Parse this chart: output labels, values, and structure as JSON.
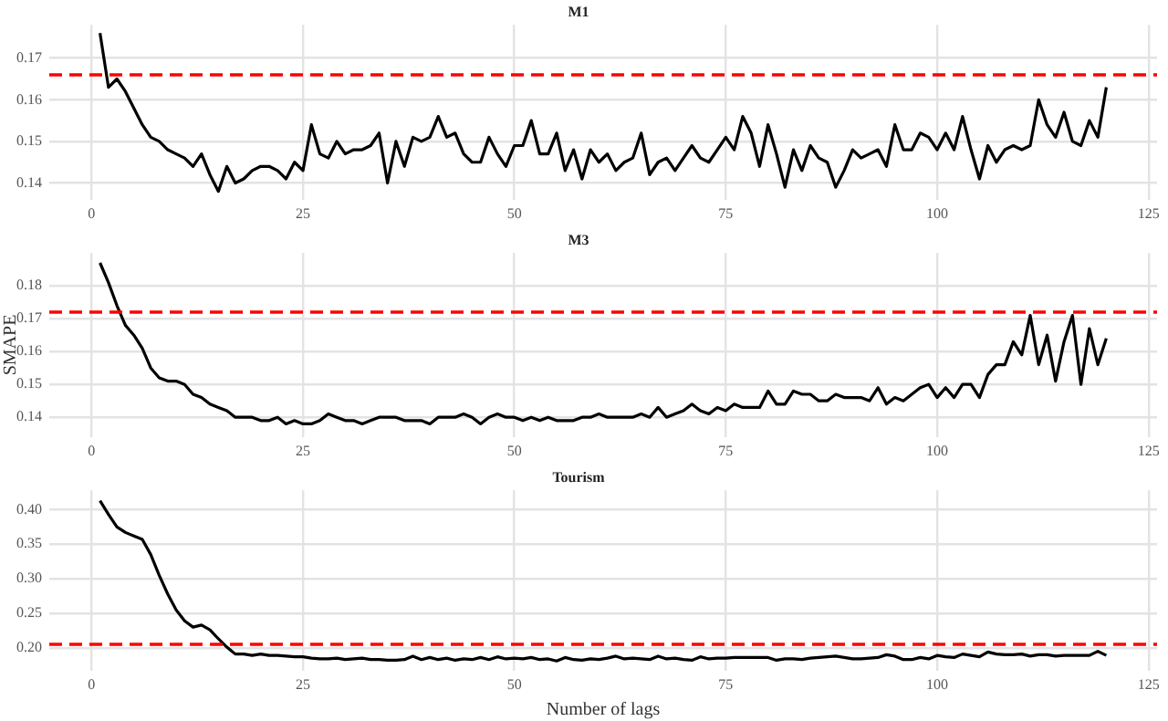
{
  "chart_data": [
    {
      "type": "line",
      "title": "M1",
      "xlim": [
        -5,
        126
      ],
      "xticks": [
        0,
        25,
        50,
        75,
        100,
        125
      ],
      "ylim": [
        0.136,
        0.178
      ],
      "yticks": [
        0.14,
        0.15,
        0.16,
        0.17
      ],
      "grid": true,
      "legend": false,
      "marker": "none",
      "line_style": "solid",
      "x": [
        1,
        2,
        3,
        4,
        5,
        6,
        7,
        8,
        9,
        10,
        11,
        12,
        13,
        14,
        15,
        16,
        17,
        18,
        19,
        20,
        21,
        22,
        23,
        24,
        25,
        26,
        27,
        28,
        29,
        30,
        31,
        32,
        33,
        34,
        35,
        36,
        37,
        38,
        39,
        40,
        41,
        42,
        43,
        44,
        45,
        46,
        47,
        48,
        49,
        50,
        51,
        52,
        53,
        54,
        55,
        56,
        57,
        58,
        59,
        60,
        61,
        62,
        63,
        64,
        65,
        66,
        67,
        68,
        69,
        70,
        71,
        72,
        73,
        74,
        75,
        76,
        77,
        78,
        79,
        80,
        81,
        82,
        83,
        84,
        85,
        86,
        87,
        88,
        89,
        90,
        91,
        92,
        93,
        94,
        95,
        96,
        97,
        98,
        99,
        100,
        101,
        102,
        103,
        104,
        105,
        106,
        107,
        108,
        109,
        110,
        111,
        112,
        113,
        114,
        115,
        116,
        117,
        118,
        119,
        120
      ],
      "series": [
        {
          "color": "#000000",
          "values": [
            0.176,
            0.163,
            0.165,
            0.162,
            0.158,
            0.154,
            0.151,
            0.15,
            0.148,
            0.147,
            0.146,
            0.144,
            0.147,
            0.142,
            0.138,
            0.144,
            0.14,
            0.141,
            0.143,
            0.144,
            0.144,
            0.143,
            0.141,
            0.145,
            0.143,
            0.154,
            0.147,
            0.146,
            0.15,
            0.147,
            0.148,
            0.148,
            0.149,
            0.152,
            0.14,
            0.15,
            0.144,
            0.151,
            0.15,
            0.151,
            0.156,
            0.151,
            0.152,
            0.147,
            0.145,
            0.145,
            0.151,
            0.147,
            0.144,
            0.149,
            0.149,
            0.155,
            0.147,
            0.147,
            0.152,
            0.143,
            0.148,
            0.141,
            0.148,
            0.145,
            0.147,
            0.143,
            0.145,
            0.146,
            0.152,
            0.142,
            0.145,
            0.146,
            0.143,
            0.146,
            0.149,
            0.146,
            0.145,
            0.148,
            0.151,
            0.148,
            0.156,
            0.152,
            0.144,
            0.154,
            0.147,
            0.139,
            0.148,
            0.143,
            0.149,
            0.146,
            0.145,
            0.139,
            0.143,
            0.148,
            0.146,
            0.147,
            0.148,
            0.144,
            0.154,
            0.148,
            0.148,
            0.152,
            0.151,
            0.148,
            0.152,
            0.148,
            0.156,
            0.148,
            0.141,
            0.149,
            0.145,
            0.148,
            0.149,
            0.148,
            0.149,
            0.16,
            0.154,
            0.151,
            0.157,
            0.15,
            0.149,
            0.155,
            0.151,
            0.163
          ]
        }
      ],
      "ref_lines": [
        {
          "axis": "y",
          "value": 0.166,
          "color": "#ff0000",
          "line_style": "dashed"
        }
      ]
    },
    {
      "type": "line",
      "title": "M3",
      "ylabel": "SMAPE",
      "xlim": [
        -5,
        126
      ],
      "xticks": [
        0,
        25,
        50,
        75,
        100,
        125
      ],
      "ylim": [
        0.134,
        0.19
      ],
      "yticks": [
        0.14,
        0.15,
        0.16,
        0.17,
        0.18
      ],
      "grid": true,
      "legend": false,
      "marker": "none",
      "line_style": "solid",
      "x": [
        1,
        2,
        3,
        4,
        5,
        6,
        7,
        8,
        9,
        10,
        11,
        12,
        13,
        14,
        15,
        16,
        17,
        18,
        19,
        20,
        21,
        22,
        23,
        24,
        25,
        26,
        27,
        28,
        29,
        30,
        31,
        32,
        33,
        34,
        35,
        36,
        37,
        38,
        39,
        40,
        41,
        42,
        43,
        44,
        45,
        46,
        47,
        48,
        49,
        50,
        51,
        52,
        53,
        54,
        55,
        56,
        57,
        58,
        59,
        60,
        61,
        62,
        63,
        64,
        65,
        66,
        67,
        68,
        69,
        70,
        71,
        72,
        73,
        74,
        75,
        76,
        77,
        78,
        79,
        80,
        81,
        82,
        83,
        84,
        85,
        86,
        87,
        88,
        89,
        90,
        91,
        92,
        93,
        94,
        95,
        96,
        97,
        98,
        99,
        100,
        101,
        102,
        103,
        104,
        105,
        106,
        107,
        108,
        109,
        110,
        111,
        112,
        113,
        114,
        115,
        116,
        117,
        118,
        119,
        120
      ],
      "series": [
        {
          "color": "#000000",
          "values": [
            0.187,
            0.181,
            0.174,
            0.168,
            0.165,
            0.161,
            0.155,
            0.152,
            0.151,
            0.151,
            0.15,
            0.147,
            0.146,
            0.144,
            0.143,
            0.142,
            0.14,
            0.14,
            0.14,
            0.139,
            0.139,
            0.14,
            0.138,
            0.139,
            0.138,
            0.138,
            0.139,
            0.141,
            0.14,
            0.139,
            0.139,
            0.138,
            0.139,
            0.14,
            0.14,
            0.14,
            0.139,
            0.139,
            0.139,
            0.138,
            0.14,
            0.14,
            0.14,
            0.141,
            0.14,
            0.138,
            0.14,
            0.141,
            0.14,
            0.14,
            0.139,
            0.14,
            0.139,
            0.14,
            0.139,
            0.139,
            0.139,
            0.14,
            0.14,
            0.141,
            0.14,
            0.14,
            0.14,
            0.14,
            0.141,
            0.14,
            0.143,
            0.14,
            0.141,
            0.142,
            0.144,
            0.142,
            0.141,
            0.143,
            0.142,
            0.144,
            0.143,
            0.143,
            0.143,
            0.148,
            0.144,
            0.144,
            0.148,
            0.147,
            0.147,
            0.145,
            0.145,
            0.147,
            0.146,
            0.146,
            0.146,
            0.145,
            0.149,
            0.144,
            0.146,
            0.145,
            0.147,
            0.149,
            0.15,
            0.146,
            0.149,
            0.146,
            0.15,
            0.15,
            0.146,
            0.153,
            0.156,
            0.156,
            0.163,
            0.159,
            0.171,
            0.156,
            0.165,
            0.151,
            0.163,
            0.171,
            0.15,
            0.167,
            0.156,
            0.164
          ]
        }
      ],
      "ref_lines": [
        {
          "axis": "y",
          "value": 0.172,
          "color": "#ff0000",
          "line_style": "dashed"
        }
      ]
    },
    {
      "type": "line",
      "title": "Tourism",
      "xlabel": "Number of lags",
      "xlim": [
        -5,
        126
      ],
      "xticks": [
        0,
        25,
        50,
        75,
        100,
        125
      ],
      "ylim": [
        0.167,
        0.428
      ],
      "yticks": [
        {
          "value": 0.2,
          "label": "0.20"
        },
        0.25,
        {
          "value": 0.3,
          "label": "0.30"
        },
        0.35,
        {
          "value": 0.4,
          "label": "0.40"
        }
      ],
      "grid": true,
      "legend": false,
      "marker": "none",
      "line_style": "solid",
      "x": [
        1,
        2,
        3,
        4,
        5,
        6,
        7,
        8,
        9,
        10,
        11,
        12,
        13,
        14,
        15,
        16,
        17,
        18,
        19,
        20,
        21,
        22,
        23,
        24,
        25,
        26,
        27,
        28,
        29,
        30,
        31,
        32,
        33,
        34,
        35,
        36,
        37,
        38,
        39,
        40,
        41,
        42,
        43,
        44,
        45,
        46,
        47,
        48,
        49,
        50,
        51,
        52,
        53,
        54,
        55,
        56,
        57,
        58,
        59,
        60,
        61,
        62,
        63,
        64,
        65,
        66,
        67,
        68,
        69,
        70,
        71,
        72,
        73,
        74,
        75,
        76,
        77,
        78,
        79,
        80,
        81,
        82,
        83,
        84,
        85,
        86,
        87,
        88,
        89,
        90,
        91,
        92,
        93,
        94,
        95,
        96,
        97,
        98,
        99,
        100,
        101,
        102,
        103,
        104,
        105,
        106,
        107,
        108,
        109,
        110,
        111,
        112,
        113,
        114,
        115,
        116,
        117,
        118,
        119,
        120
      ],
      "series": [
        {
          "color": "#000000",
          "values": [
            0.413,
            0.393,
            0.375,
            0.367,
            0.362,
            0.357,
            0.335,
            0.305,
            0.278,
            0.255,
            0.239,
            0.23,
            0.233,
            0.226,
            0.213,
            0.201,
            0.191,
            0.191,
            0.189,
            0.191,
            0.189,
            0.189,
            0.188,
            0.187,
            0.187,
            0.185,
            0.184,
            0.184,
            0.185,
            0.183,
            0.184,
            0.185,
            0.183,
            0.183,
            0.182,
            0.182,
            0.183,
            0.188,
            0.183,
            0.186,
            0.183,
            0.185,
            0.182,
            0.184,
            0.183,
            0.186,
            0.183,
            0.187,
            0.184,
            0.185,
            0.184,
            0.186,
            0.183,
            0.184,
            0.181,
            0.186,
            0.183,
            0.182,
            0.184,
            0.183,
            0.185,
            0.188,
            0.184,
            0.185,
            0.184,
            0.183,
            0.188,
            0.184,
            0.185,
            0.183,
            0.182,
            0.187,
            0.184,
            0.185,
            0.185,
            0.186,
            0.186,
            0.186,
            0.186,
            0.186,
            0.182,
            0.184,
            0.184,
            0.183,
            0.185,
            0.186,
            0.187,
            0.188,
            0.186,
            0.184,
            0.184,
            0.185,
            0.186,
            0.19,
            0.188,
            0.183,
            0.183,
            0.186,
            0.184,
            0.189,
            0.187,
            0.186,
            0.191,
            0.189,
            0.187,
            0.194,
            0.191,
            0.19,
            0.19,
            0.191,
            0.188,
            0.19,
            0.19,
            0.188,
            0.189,
            0.189,
            0.189,
            0.189,
            0.195,
            0.189
          ]
        }
      ],
      "ref_lines": [
        {
          "axis": "y",
          "value": 0.205,
          "color": "#ff0000",
          "line_style": "dashed"
        }
      ]
    }
  ]
}
